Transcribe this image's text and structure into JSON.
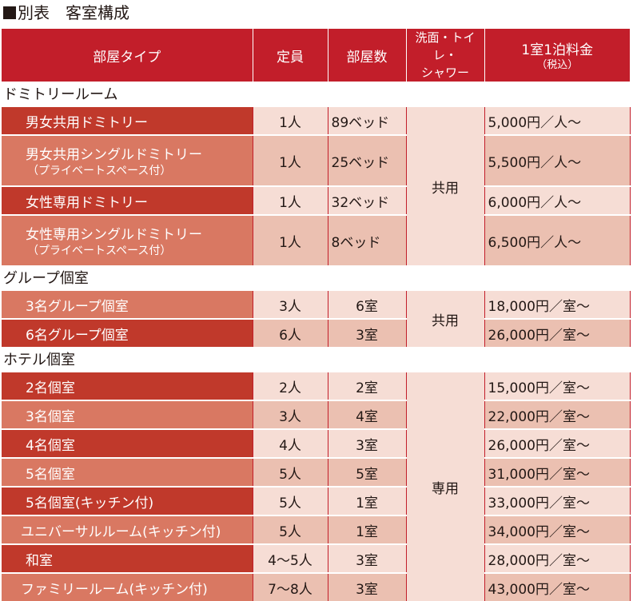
{
  "title": "別表　客室構成",
  "headers": {
    "type": "部屋タイプ",
    "capacity": "定員",
    "rooms": "部屋数",
    "facilities_line1": "洗面・トイレ・",
    "facilities_line2": "シャワー",
    "price_line1": "1室1泊料金",
    "price_line2": "（税込）"
  },
  "sections": [
    {
      "label": "ドミトリールーム",
      "facilities": "共用",
      "rows": [
        {
          "name": "男女共用ドミトリー",
          "note": "",
          "capacity": "1人",
          "rooms": "89ベッド",
          "price": "5,000円／人〜"
        },
        {
          "name": "男女共用シングルドミトリー",
          "note": "（プライベートスペース付）",
          "capacity": "1人",
          "rooms": "25ベッド",
          "price": "5,500円／人〜"
        },
        {
          "name": "女性専用ドミトリー",
          "note": "",
          "capacity": "1人",
          "rooms": "32ベッド",
          "price": "6,000円／人〜"
        },
        {
          "name": "女性専用シングルドミトリー",
          "note": "（プライベートスペース付）",
          "capacity": "1人",
          "rooms": "8ベッド",
          "price": "6,500円／人〜"
        }
      ]
    },
    {
      "label": "グループ個室",
      "facilities": "共用",
      "rows": [
        {
          "name": "3名グループ個室",
          "capacity": "3人",
          "rooms": "6室",
          "price": "18,000円／室〜"
        },
        {
          "name": "6名グループ個室",
          "capacity": "6人",
          "rooms": "3室",
          "price": "26,000円／室〜"
        }
      ]
    },
    {
      "label": "ホテル個室",
      "facilities": "専用",
      "rows": [
        {
          "name": "2名個室",
          "capacity": "2人",
          "rooms": "2室",
          "price": "15,000円／室〜"
        },
        {
          "name": "3名個室",
          "capacity": "3人",
          "rooms": "4室",
          "price": "22,000円／室〜"
        },
        {
          "name": "4名個室",
          "capacity": "4人",
          "rooms": "3室",
          "price": "26,000円／室〜"
        },
        {
          "name": "5名個室",
          "capacity": "5人",
          "rooms": "5室",
          "price": "31,000円／室〜"
        },
        {
          "name": "5名個室(キッチン付)",
          "capacity": "5人",
          "rooms": "1室",
          "price": "33,000円／室〜"
        },
        {
          "name": "ユニバーサルルーム(キッチン付)",
          "capacity": "5人",
          "rooms": "1室",
          "price": "34,000円／室〜"
        },
        {
          "name": "和室",
          "capacity": "4〜5人",
          "rooms": "3室",
          "price": "28,000円／室〜"
        },
        {
          "name": "ファミリールーム(キッチン付)",
          "capacity": "7〜8人",
          "rooms": "3室",
          "price": "43,000円／室〜"
        }
      ]
    }
  ],
  "colors": {
    "header": "#c21e2a",
    "name_dark": "#c0392b",
    "name_light": "#d97862",
    "cell_light": "#f6ddd5",
    "cell_mid": "#ebc0b1"
  }
}
